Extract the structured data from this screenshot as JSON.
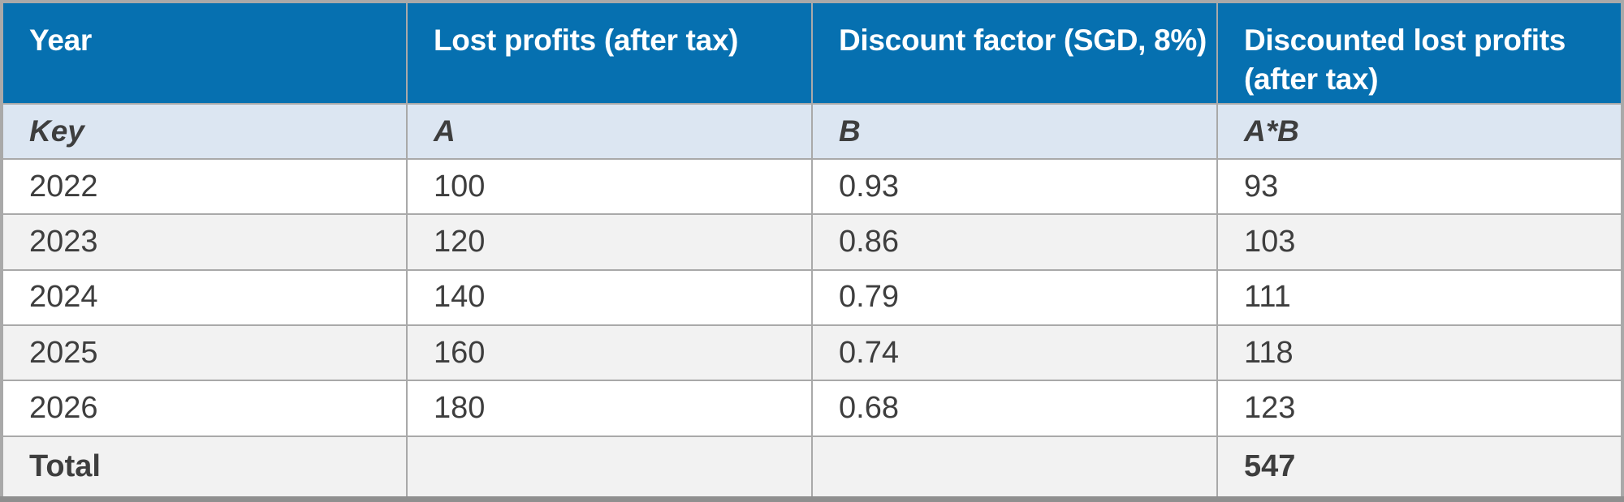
{
  "table": {
    "headers": [
      "Year",
      "Lost profits (after tax)",
      "Discount factor (SGD, 8%)",
      "Discounted lost profits (after tax)"
    ],
    "key_row": [
      "Key",
      "A",
      "B",
      "A*B"
    ],
    "rows": [
      [
        "2022",
        "100",
        "0.93",
        "93"
      ],
      [
        "2023",
        "120",
        "0.86",
        "103"
      ],
      [
        "2024",
        "140",
        "0.79",
        "111"
      ],
      [
        "2025",
        "160",
        "0.74",
        "118"
      ],
      [
        "2026",
        "180",
        "0.68",
        "123"
      ]
    ],
    "total": {
      "label": "Total",
      "lost_profits": "",
      "discount_factor": "",
      "value": "547"
    }
  },
  "colors": {
    "header_bg": "#0670b0",
    "header_text": "#ffffff",
    "key_row_bg": "#dce6f2",
    "stripe_bg": "#f2f2f2",
    "row_bg": "#ffffff",
    "grid": "#a9a9a9",
    "grid_dark": "#8f8f8f",
    "text": "#3e3e3e"
  }
}
